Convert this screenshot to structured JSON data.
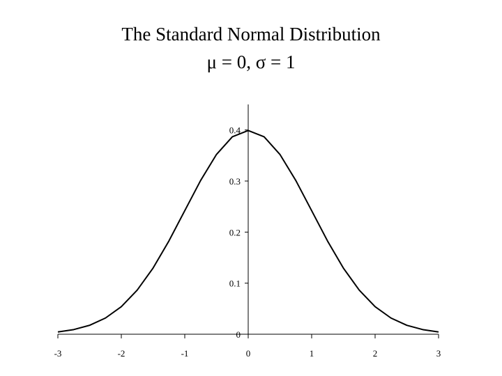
{
  "title_lines": [
    "The Standard Normal Distribution",
    "μ = 0, σ = 1"
  ],
  "chart_data": {
    "type": "line",
    "title": "The Standard Normal Distribution",
    "subtitle": "μ = 0, σ = 1",
    "xlabel": "",
    "ylabel": "",
    "xlim": [
      -3,
      3
    ],
    "ylim": [
      0,
      0.45
    ],
    "grid": false,
    "x_ticks": [
      -3,
      -2,
      -1,
      0,
      1,
      2,
      3
    ],
    "y_ticks": [
      0,
      0.1,
      0.2,
      0.3,
      0.4
    ],
    "x_tick_labels": [
      "-3",
      "-2",
      "-1",
      "0",
      "1",
      "2",
      "3"
    ],
    "y_tick_labels": [
      "0",
      "0.1",
      "0.2",
      "0.3",
      "0.4"
    ],
    "series": [
      {
        "x": [
          -3,
          -2.75,
          -2.5,
          -2.25,
          -2,
          -1.75,
          -1.5,
          -1.25,
          -1,
          -0.75,
          -0.5,
          -0.25,
          0,
          0.25,
          0.5,
          0.75,
          1,
          1.25,
          1.5,
          1.75,
          2,
          2.25,
          2.5,
          2.75,
          3
        ],
        "y": [
          0.0044,
          0.0091,
          0.0175,
          0.0317,
          0.054,
          0.0863,
          0.1295,
          0.1826,
          0.242,
          0.3011,
          0.3521,
          0.3867,
          0.3989,
          0.3867,
          0.3521,
          0.3011,
          0.242,
          0.1826,
          0.1295,
          0.0863,
          0.054,
          0.0317,
          0.0175,
          0.0091,
          0.0044
        ]
      }
    ],
    "colors": {
      "curve": "#000000",
      "axis": "#000000"
    }
  }
}
